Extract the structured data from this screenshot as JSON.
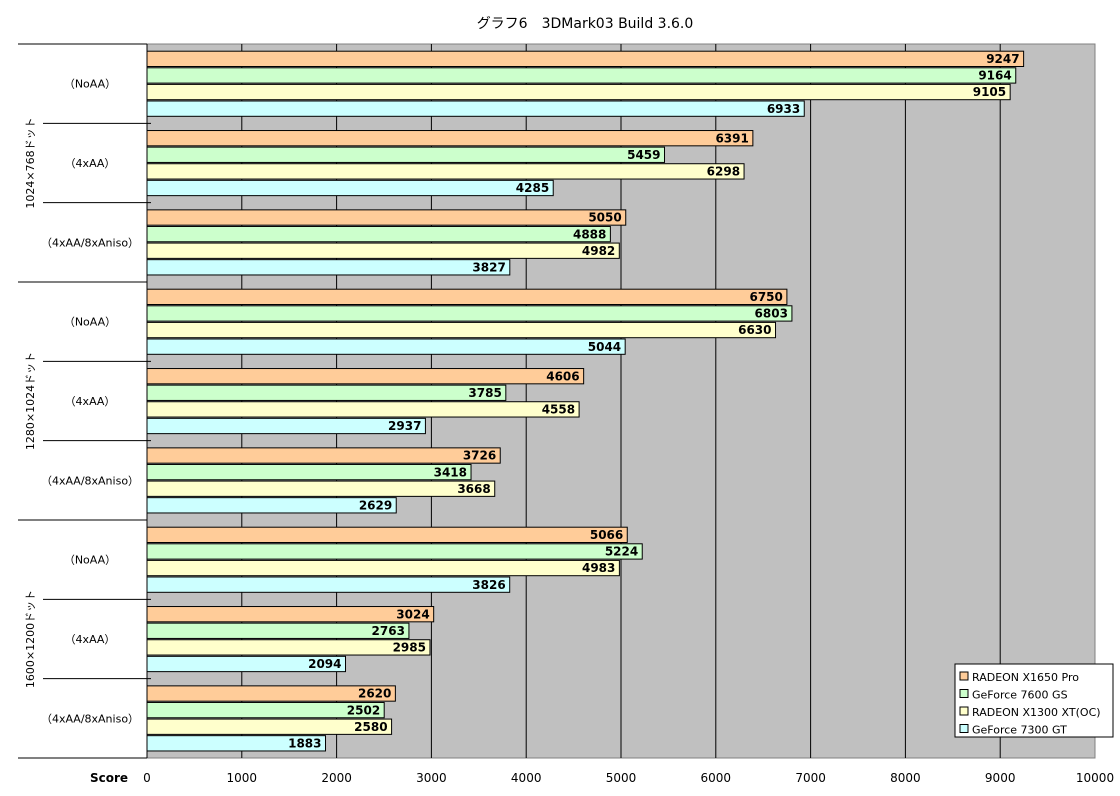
{
  "chart_data": {
    "type": "bar",
    "orientation": "horizontal",
    "title": "グラフ6　3DMark03 Build 3.6.0",
    "xlabel": "Score",
    "xlim": [
      0,
      10000
    ],
    "xticks": [
      0,
      1000,
      2000,
      3000,
      4000,
      5000,
      6000,
      7000,
      8000,
      9000,
      10000
    ],
    "grid": true,
    "legend_position": "bottom-right",
    "groups": [
      {
        "label": "1024×768ドット",
        "subcategories": [
          "（NoAA）",
          "（4xAA）",
          "（4xAA/8xAniso）"
        ]
      },
      {
        "label": "1280×1024ドット",
        "subcategories": [
          "（NoAA）",
          "（4xAA）",
          "（4xAA/8xAniso）"
        ]
      },
      {
        "label": "1600×1200ドット",
        "subcategories": [
          "（NoAA）",
          "（4xAA）",
          "（4xAA/8xAniso）"
        ]
      }
    ],
    "series": [
      {
        "name": "RADEON X1650 Pro",
        "color": "#FFCC99",
        "values": [
          9247,
          6391,
          5050,
          6750,
          4606,
          3726,
          5066,
          3024,
          2620
        ]
      },
      {
        "name": "GeForce 7600 GS",
        "color": "#CCFFCC",
        "values": [
          9164,
          5459,
          4888,
          6803,
          3785,
          3418,
          5224,
          2763,
          2502
        ]
      },
      {
        "name": "RADEON X1300 XT(OC)",
        "color": "#FFFFCC",
        "values": [
          9105,
          6298,
          4982,
          6630,
          4558,
          3668,
          4983,
          2985,
          2580
        ]
      },
      {
        "name": "GeForce 7300 GT",
        "color": "#CCFFFF",
        "values": [
          6933,
          4285,
          3827,
          5044,
          2937,
          2629,
          3826,
          2094,
          1883
        ]
      }
    ],
    "plot_background": "#C0C0C0"
  }
}
